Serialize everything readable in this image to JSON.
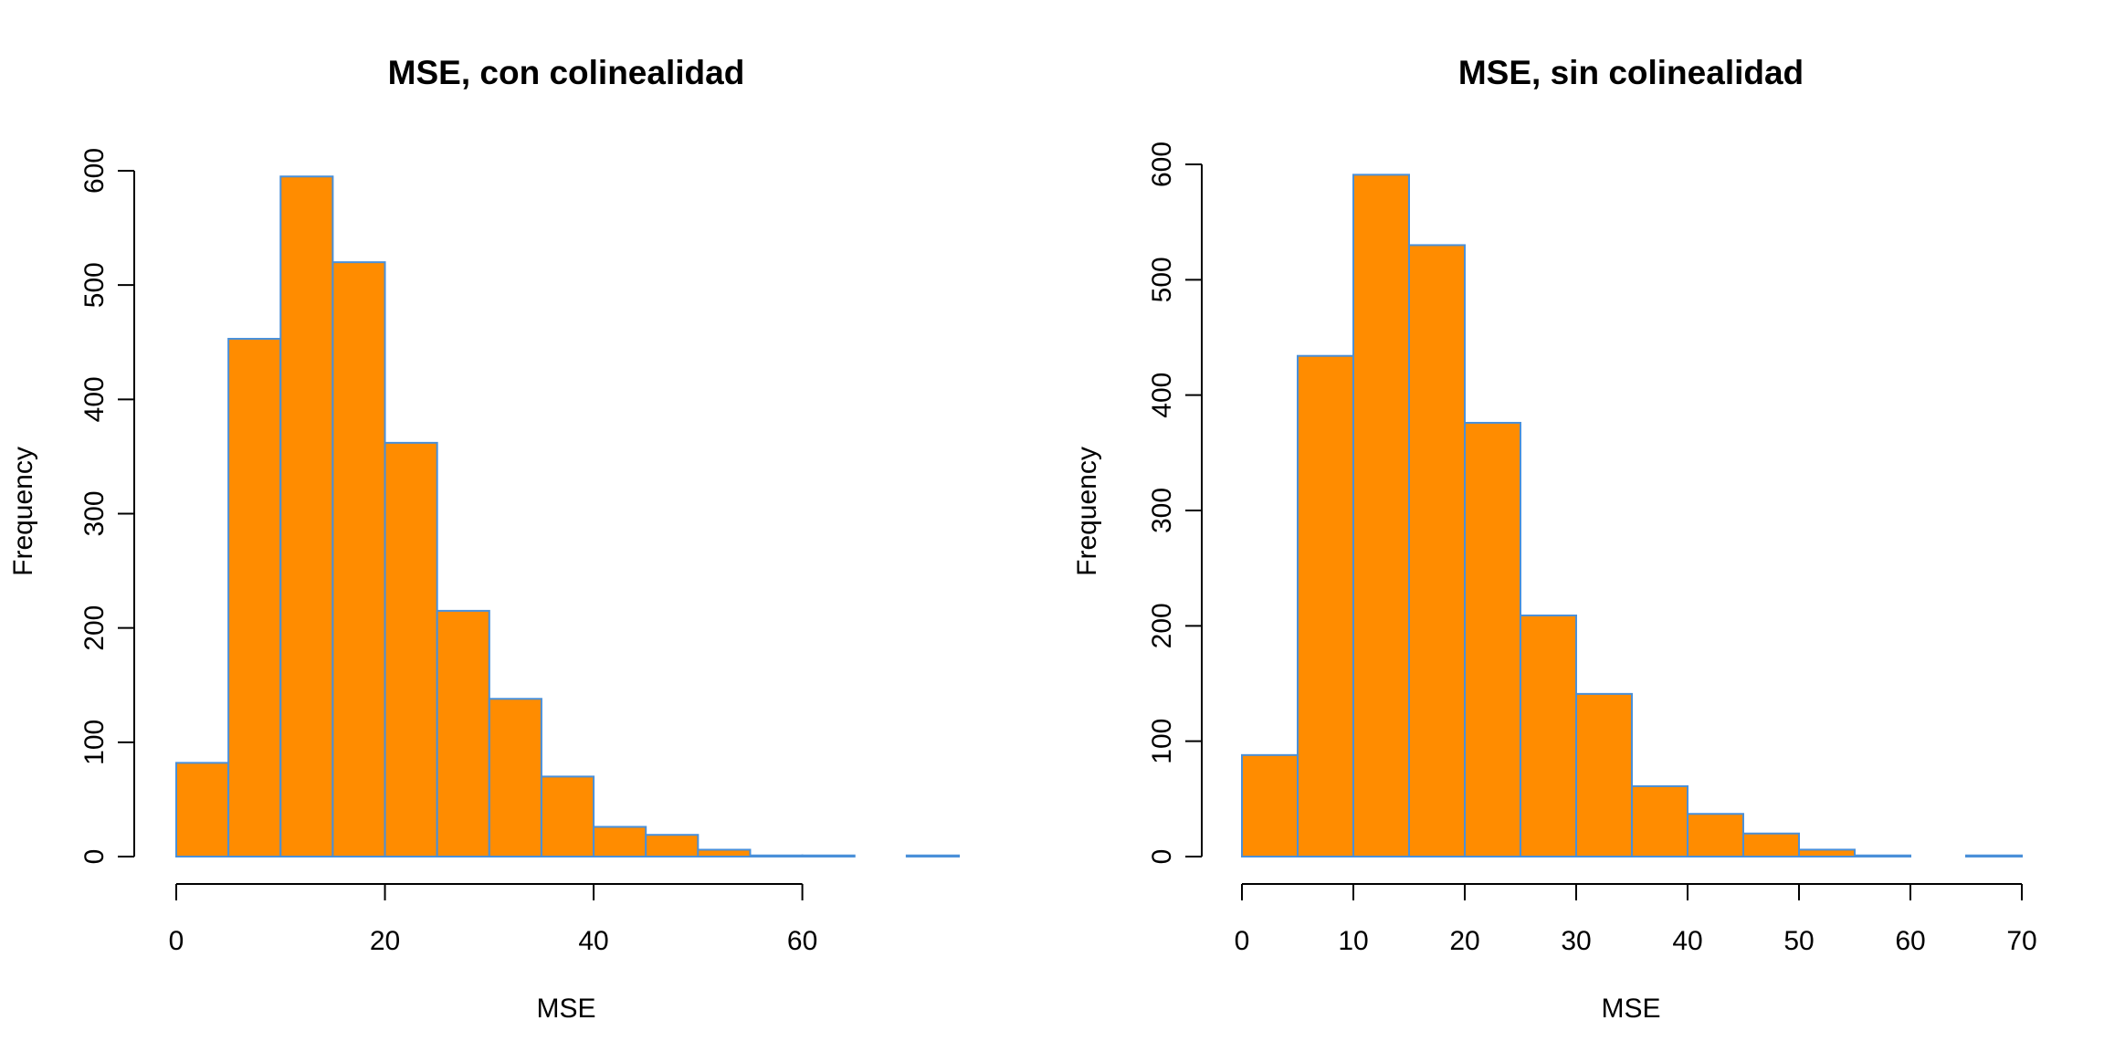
{
  "chart_data": [
    {
      "type": "bar",
      "histogram": true,
      "title": "MSE, con colinealidad",
      "xlabel": "MSE",
      "ylabel": "Frequency",
      "bin_edges": [
        0,
        5,
        10,
        15,
        20,
        25,
        30,
        35,
        40,
        45,
        50,
        55,
        60,
        65,
        70,
        75
      ],
      "values": [
        82,
        453,
        595,
        520,
        362,
        215,
        138,
        70,
        26,
        19,
        6,
        1,
        1,
        0,
        1
      ],
      "xticks": [
        0,
        20,
        40,
        60
      ],
      "yticks": [
        0,
        100,
        200,
        300,
        400,
        500,
        600
      ],
      "xlim": [
        0,
        75
      ],
      "ylim": [
        0,
        600
      ],
      "bar_fill": "#FF8C00",
      "bar_border": "#4A90D9",
      "grid": false
    },
    {
      "type": "bar",
      "histogram": true,
      "title": "MSE, sin colinealidad",
      "xlabel": "MSE",
      "ylabel": "Frequency",
      "bin_edges": [
        0,
        5,
        10,
        15,
        20,
        25,
        30,
        35,
        40,
        45,
        50,
        55,
        60,
        65,
        70
      ],
      "values": [
        88,
        434,
        591,
        530,
        376,
        209,
        141,
        61,
        37,
        20,
        6,
        1,
        0,
        1
      ],
      "xticks": [
        0,
        10,
        20,
        30,
        40,
        50,
        60,
        70
      ],
      "yticks": [
        0,
        100,
        200,
        300,
        400,
        500,
        600
      ],
      "xlim": [
        0,
        70
      ],
      "ylim": [
        0,
        600
      ],
      "bar_fill": "#FF8C00",
      "bar_border": "#4A90D9",
      "grid": false
    }
  ]
}
